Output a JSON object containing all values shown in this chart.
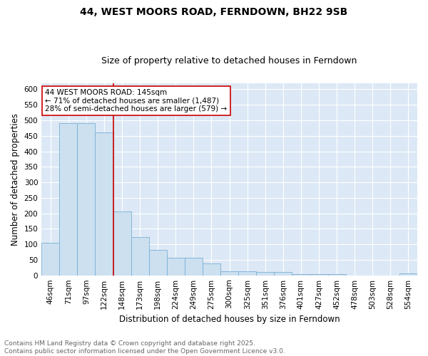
{
  "title": "44, WEST MOORS ROAD, FERNDOWN, BH22 9SB",
  "subtitle": "Size of property relative to detached houses in Ferndown",
  "xlabel": "Distribution of detached houses by size in Ferndown",
  "ylabel": "Number of detached properties",
  "categories": [
    "46sqm",
    "71sqm",
    "97sqm",
    "122sqm",
    "148sqm",
    "173sqm",
    "198sqm",
    "224sqm",
    "249sqm",
    "275sqm",
    "300sqm",
    "325sqm",
    "351sqm",
    "376sqm",
    "401sqm",
    "427sqm",
    "452sqm",
    "478sqm",
    "503sqm",
    "528sqm",
    "554sqm"
  ],
  "values": [
    105,
    490,
    490,
    460,
    207,
    123,
    83,
    57,
    57,
    38,
    14,
    14,
    10,
    10,
    3,
    3,
    5,
    0,
    0,
    0,
    6
  ],
  "bar_color": "#cce0f0",
  "bar_edge_color": "#7aafd4",
  "vline_x_index": 4,
  "vline_color": "#cc0000",
  "annotation_text": "44 WEST MOORS ROAD: 145sqm\n← 71% of detached houses are smaller (1,487)\n28% of semi-detached houses are larger (579) →",
  "annotation_box_facecolor": "white",
  "annotation_box_edgecolor": "#cc0000",
  "ylim": [
    0,
    620
  ],
  "yticks": [
    0,
    50,
    100,
    150,
    200,
    250,
    300,
    350,
    400,
    450,
    500,
    550,
    600
  ],
  "fig_bg_color": "#ffffff",
  "plot_bg_color": "#dce8f5",
  "grid_color": "#ffffff",
  "title_fontsize": 10,
  "subtitle_fontsize": 9,
  "axis_label_fontsize": 8.5,
  "tick_fontsize": 7.5,
  "annotation_fontsize": 7.5,
  "footer_fontsize": 6.5,
  "footer_text": "Contains HM Land Registry data © Crown copyright and database right 2025.\nContains public sector information licensed under the Open Government Licence v3.0.",
  "footer_color": "#666666"
}
